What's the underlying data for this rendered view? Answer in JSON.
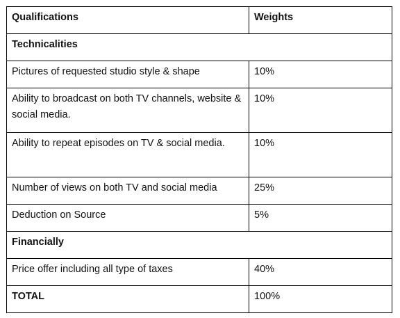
{
  "table": {
    "headers": [
      "Qualifications",
      "Weights"
    ],
    "sections": [
      {
        "title": "Technicalities",
        "rows": [
          {
            "qualification": "Pictures of requested studio style & shape",
            "weight": "10%"
          },
          {
            "qualification": "Ability to broadcast on both TV channels, website & social media.",
            "weight": "10%"
          },
          {
            "qualification": "Ability to repeat episodes on TV & social media.",
            "weight": "10%"
          },
          {
            "qualification": "Number of views on both TV and social media",
            "weight": "25%"
          },
          {
            "qualification": "Deduction on Source",
            "weight": "5%"
          }
        ]
      },
      {
        "title": "Financially",
        "rows": [
          {
            "qualification": "Price offer including all type of taxes",
            "weight": "40%"
          }
        ]
      }
    ],
    "total": {
      "label": "TOTAL",
      "weight": "100%"
    }
  }
}
